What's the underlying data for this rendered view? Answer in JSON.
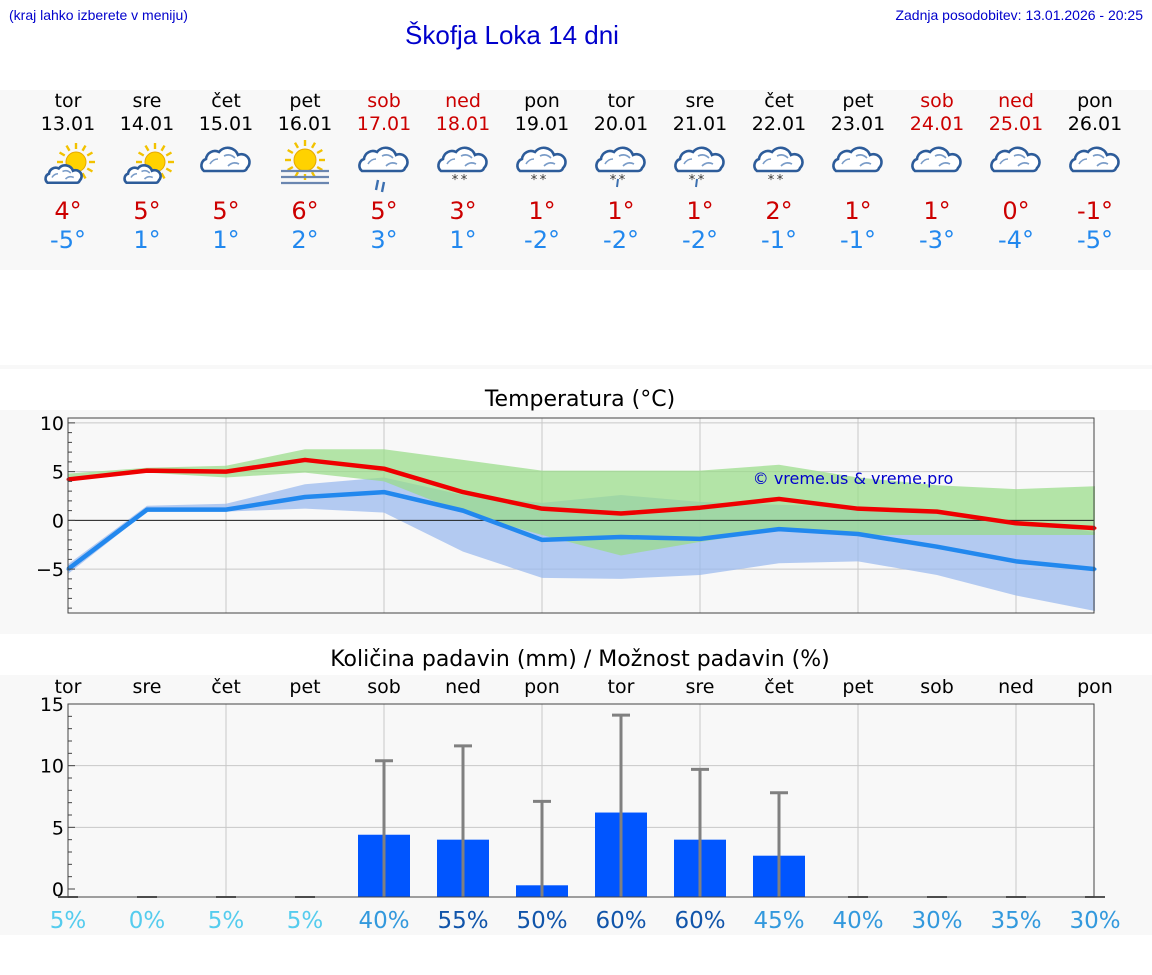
{
  "header": {
    "menu_hint": "(kraj lahko izberete v meniju)",
    "title": "Škofja Loka 14 dni",
    "last_update": "Zadnja posodobitev: 13.01.2026 - 20:25"
  },
  "days": [
    {
      "dow": "tor",
      "date": "13.01",
      "weekend": false,
      "icon": "sun-cloud-icon",
      "tmax": "4°",
      "tmin": "-5°"
    },
    {
      "dow": "sre",
      "date": "14.01",
      "weekend": false,
      "icon": "sun-cloud-icon",
      "tmax": "5°",
      "tmin": "1°"
    },
    {
      "dow": "čet",
      "date": "15.01",
      "weekend": false,
      "icon": "cloud-icon",
      "tmax": "5°",
      "tmin": "1°"
    },
    {
      "dow": "pet",
      "date": "16.01",
      "weekend": false,
      "icon": "sun-fog-icon",
      "tmax": "6°",
      "tmin": "2°"
    },
    {
      "dow": "sob",
      "date": "17.01",
      "weekend": true,
      "icon": "cloud-rain-icon",
      "tmax": "5°",
      "tmin": "3°"
    },
    {
      "dow": "ned",
      "date": "18.01",
      "weekend": true,
      "icon": "cloud-snow-icon",
      "tmax": "3°",
      "tmin": "1°"
    },
    {
      "dow": "pon",
      "date": "19.01",
      "weekend": false,
      "icon": "cloud-snow-icon",
      "tmax": "1°",
      "tmin": "-2°"
    },
    {
      "dow": "tor",
      "date": "20.01",
      "weekend": false,
      "icon": "cloud-sleet-icon",
      "tmax": "1°",
      "tmin": "-2°"
    },
    {
      "dow": "sre",
      "date": "21.01",
      "weekend": false,
      "icon": "cloud-sleet-icon",
      "tmax": "1°",
      "tmin": "-2°"
    },
    {
      "dow": "čet",
      "date": "22.01",
      "weekend": false,
      "icon": "cloud-snow-icon",
      "tmax": "2°",
      "tmin": "-1°"
    },
    {
      "dow": "pet",
      "date": "23.01",
      "weekend": false,
      "icon": "cloud-icon",
      "tmax": "1°",
      "tmin": "-1°"
    },
    {
      "dow": "sob",
      "date": "24.01",
      "weekend": true,
      "icon": "cloud-icon",
      "tmax": "1°",
      "tmin": "-3°"
    },
    {
      "dow": "ned",
      "date": "25.01",
      "weekend": true,
      "icon": "cloud-icon",
      "tmax": "0°",
      "tmin": "-4°"
    },
    {
      "dow": "pon",
      "date": "26.01",
      "weekend": false,
      "icon": "cloud-icon",
      "tmax": "-1°",
      "tmin": "-5°"
    }
  ],
  "colors": {
    "max_line": "#ee0000",
    "min_line": "#2288ee",
    "max_band": "#99dd88",
    "min_band": "#99b8ee",
    "bar": "#0055ff",
    "whisker": "#808080",
    "title_blue": "#0000cc",
    "weekend": "#cc0000"
  },
  "chart_data": [
    {
      "type": "line",
      "title": "Temperatura (°C)",
      "watermark": "© vreme.us & vreme.pro",
      "x": [
        "13.01",
        "14.01",
        "15.01",
        "16.01",
        "17.01",
        "18.01",
        "19.01",
        "20.01",
        "21.01",
        "22.01",
        "23.01",
        "24.01",
        "25.01",
        "26.01"
      ],
      "ylim": [
        -9.5,
        10.5
      ],
      "yticks": [
        10,
        5,
        0,
        -5
      ],
      "ytick_labels": [
        "10",
        "5",
        "0",
        "−5"
      ],
      "series": [
        {
          "name": "max",
          "values": [
            4.2,
            5.1,
            5.0,
            6.2,
            5.3,
            2.9,
            1.2,
            0.7,
            1.3,
            2.2,
            1.2,
            0.9,
            -0.3,
            -0.8
          ]
        },
        {
          "name": "min",
          "values": [
            -5.0,
            1.1,
            1.1,
            2.4,
            2.9,
            1.0,
            -2.0,
            -1.7,
            -1.9,
            -0.9,
            -1.4,
            -2.7,
            -4.2,
            -5.0
          ]
        },
        {
          "name": "max_range",
          "low": [
            4.2,
            4.9,
            4.4,
            4.9,
            4.0,
            0.8,
            -1.5,
            -3.6,
            -2.2,
            -1.0,
            -1.5,
            -1.5,
            -1.5,
            -1.5
          ],
          "high": [
            4.8,
            5.4,
            5.6,
            7.3,
            7.3,
            6.2,
            5.1,
            5.1,
            5.1,
            5.7,
            4.4,
            3.6,
            3.2,
            3.5
          ]
        },
        {
          "name": "min_range",
          "low": [
            -5.5,
            0.9,
            0.9,
            1.2,
            0.8,
            -3.2,
            -5.9,
            -6.0,
            -5.6,
            -4.4,
            -4.2,
            -5.6,
            -7.7,
            -9.3
          ],
          "high": [
            -4.5,
            1.5,
            1.7,
            3.7,
            4.4,
            2.6,
            1.8,
            2.6,
            1.9,
            1.6,
            1.4,
            0.8,
            0.0,
            -1.2
          ]
        }
      ]
    },
    {
      "type": "bar",
      "title": "Količina padavin (mm) / Možnost padavin (%)",
      "categories": [
        "tor",
        "sre",
        "čet",
        "pet",
        "sob",
        "ned",
        "pon",
        "tor",
        "sre",
        "čet",
        "pet",
        "sob",
        "ned",
        "pon"
      ],
      "ylim": [
        0,
        15
      ],
      "yticks": [
        15,
        10,
        5,
        0
      ],
      "ytick_labels": [
        "15",
        "10",
        "5",
        "0"
      ],
      "series": [
        {
          "name": "precipitation_mm",
          "values": [
            0,
            0,
            0,
            0,
            4.4,
            4.0,
            0.3,
            6.2,
            4.0,
            2.7,
            0,
            0,
            0,
            0
          ]
        },
        {
          "name": "max_precipitation_mm",
          "values": [
            0,
            0,
            0,
            0,
            10.4,
            11.6,
            7.1,
            14.1,
            9.7,
            7.8,
            0,
            0,
            0,
            0
          ]
        }
      ],
      "probabilities": [
        "5%",
        "0%",
        "5%",
        "5%",
        "40%",
        "55%",
        "50%",
        "60%",
        "60%",
        "45%",
        "40%",
        "30%",
        "35%",
        "30%"
      ],
      "probability_colors": [
        "#55ccee",
        "#55ccee",
        "#55ccee",
        "#55ccee",
        "#3399dd",
        "#1155aa",
        "#1155aa",
        "#1155aa",
        "#1155aa",
        "#3399dd",
        "#3399dd",
        "#3399dd",
        "#3399dd",
        "#3399dd"
      ]
    }
  ]
}
